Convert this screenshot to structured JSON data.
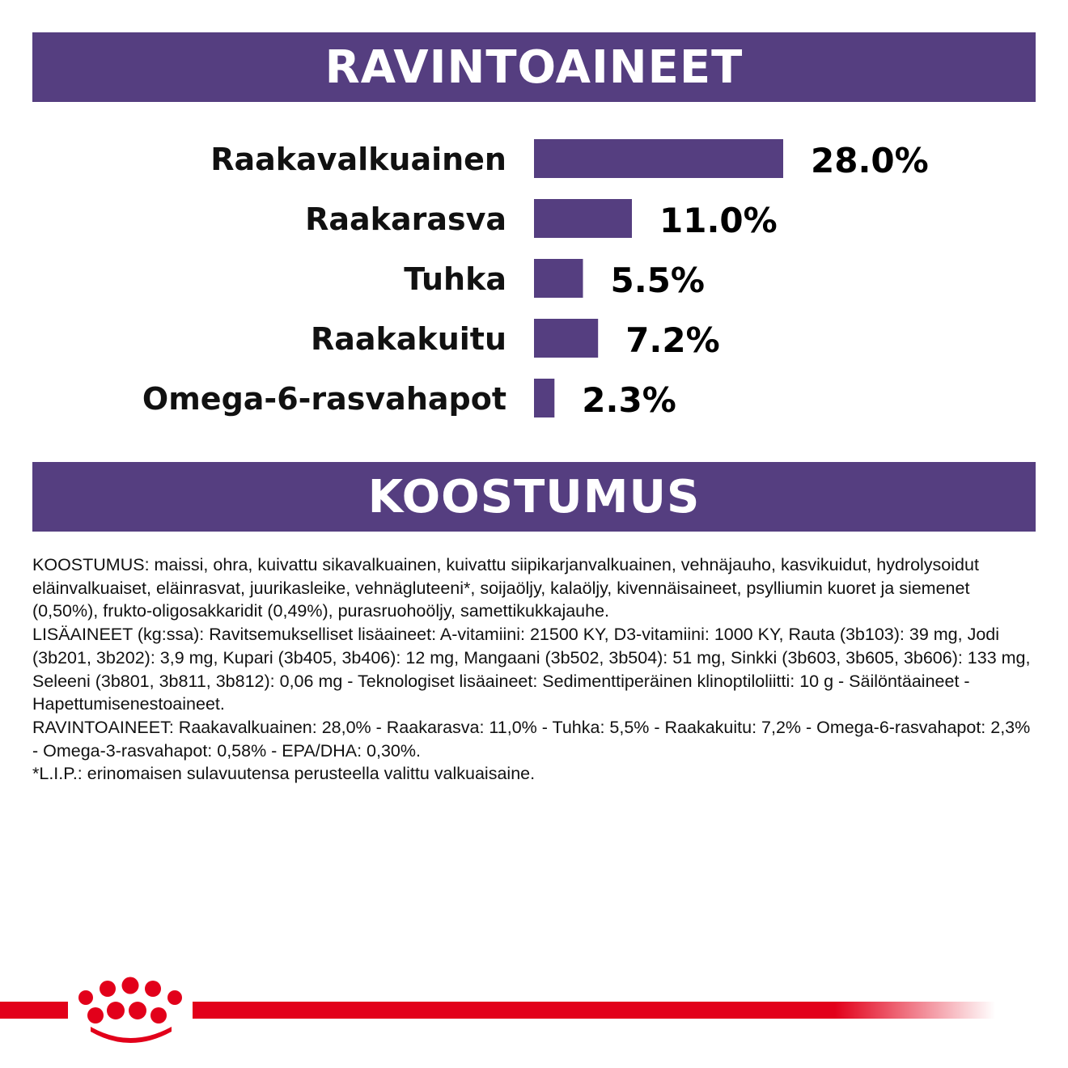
{
  "header": {
    "nutrients_title": "RAVINTOAINEET"
  },
  "chart_data": {
    "type": "bar",
    "orientation": "horizontal",
    "categories": [
      "Raakavalkuainen",
      "Raakarasva",
      "Tuhka",
      "Raakakuitu",
      "Omega-6-rasvahapot"
    ],
    "values": [
      28.0,
      11.0,
      5.5,
      7.2,
      2.3
    ],
    "value_labels": [
      "28.0%",
      "11.0%",
      "5.5%",
      "7.2%",
      "2.3%"
    ],
    "unit": "%",
    "bar_color": "#553e80",
    "title": "",
    "xlabel": "",
    "ylabel": ""
  },
  "composition": {
    "title": "KOOSTUMUS",
    "paragraphs": [
      "KOOSTUMUS: maissi, ohra, kuivattu sikavalkuainen, kuivattu siipikarjanvalkuainen, vehnäjauho, kasvikuidut, hydrolysoidut eläinvalkuaiset, eläinrasvat, juurikasleike, vehnägluteeni*, soijaöljy, kalaöljy, kivennäisaineet, psylliumin kuoret ja siemenet (0,50%), frukto-oligosakkaridit (0,49%), purasruohoöljy, samettikukkajauhe.",
      "LISÄAINEET (kg:ssa): Ravitsemukselliset lisäaineet: A-vitamiini: 21500 KY, D3-vitamiini: 1000 KY, Rauta (3b103): 39 mg, Jodi (3b201, 3b202): 3,9 mg, Kupari (3b405, 3b406): 12 mg, Mangaani (3b502, 3b504): 51 mg, Sinkki (3b603, 3b605, 3b606): 133 mg, Seleeni (3b801, 3b811, 3b812): 0,06 mg - Teknologiset lisäaineet: Sedimenttiperäinen klinoptiloliitti: 10 g - Säilöntäaineet - Hapettumisenestoaineet.",
      "RAVINTOAINEET: Raakavalkuainen: 28,0% - Raakarasva: 11,0% - Tuhka: 5,5% - Raakakuitu: 7,2% - Omega-6-rasvahapot: 2,3% - Omega-3-rasvahapot: 0,58% - EPA/DHA: 0,30%.",
      "*L.I.P.: erinomaisen sulavuutensa perusteella valittu valkuaisaine."
    ]
  },
  "brand": {
    "logo_icon": "royal-canin-crown-icon",
    "accent_color": "#e2001a"
  }
}
